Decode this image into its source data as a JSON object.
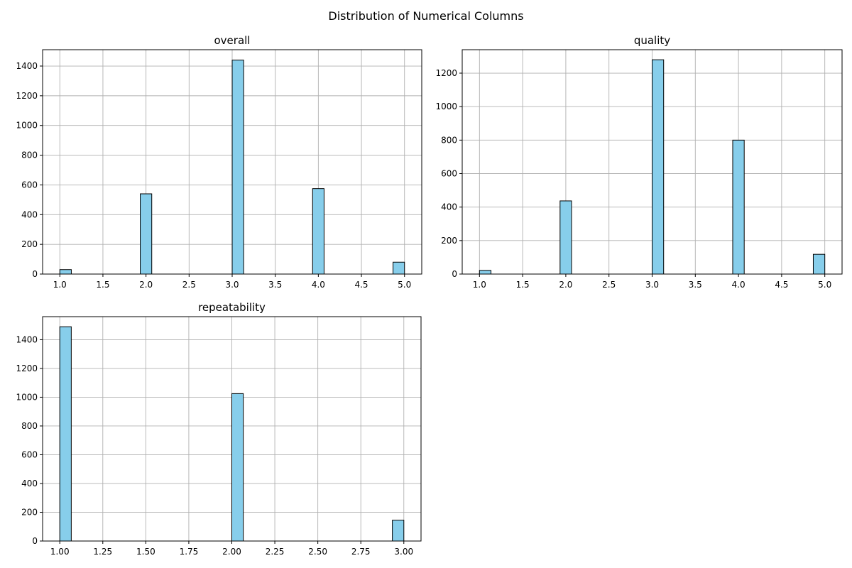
{
  "figure": {
    "title": "Distribution of Numerical Columns"
  },
  "colors": {
    "bar_fill": "#87ceeb",
    "bar_edge": "#000000",
    "grid": "#b0b0b0",
    "axes": "#000000"
  },
  "chart_data": [
    {
      "type": "bar",
      "title": "overall",
      "xlabel": "",
      "ylabel": "",
      "grid": true,
      "xlim": [
        0.8,
        5.2
      ],
      "ylim": [
        0,
        1510
      ],
      "xticks": [
        "1.0",
        "1.5",
        "2.0",
        "2.5",
        "3.0",
        "3.5",
        "4.0",
        "4.5",
        "5.0"
      ],
      "yticks": [
        "0",
        "200",
        "400",
        "600",
        "800",
        "1000",
        "1200",
        "1400"
      ],
      "bins": {
        "start": 1.0,
        "end": 5.0,
        "count": 30
      },
      "bars": [
        {
          "x": 1,
          "value": 30
        },
        {
          "x": 2,
          "value": 540
        },
        {
          "x": 3,
          "value": 1440
        },
        {
          "x": 4,
          "value": 575
        },
        {
          "x": 5,
          "value": 80
        }
      ]
    },
    {
      "type": "bar",
      "title": "quality",
      "xlabel": "",
      "ylabel": "",
      "grid": true,
      "xlim": [
        0.8,
        5.2
      ],
      "ylim": [
        0,
        1340
      ],
      "xticks": [
        "1.0",
        "1.5",
        "2.0",
        "2.5",
        "3.0",
        "3.5",
        "4.0",
        "4.5",
        "5.0"
      ],
      "yticks": [
        "0",
        "200",
        "400",
        "600",
        "800",
        "1000",
        "1200"
      ],
      "bins": {
        "start": 1.0,
        "end": 5.0,
        "count": 30
      },
      "bars": [
        {
          "x": 1,
          "value": 22
        },
        {
          "x": 2,
          "value": 437
        },
        {
          "x": 3,
          "value": 1280
        },
        {
          "x": 4,
          "value": 800
        },
        {
          "x": 5,
          "value": 118
        }
      ]
    },
    {
      "type": "bar",
      "title": "repeatability",
      "xlabel": "",
      "ylabel": "",
      "grid": true,
      "xlim": [
        0.9,
        3.1
      ],
      "ylim": [
        0,
        1560
      ],
      "xticks": [
        "1.00",
        "1.25",
        "1.50",
        "1.75",
        "2.00",
        "2.25",
        "2.50",
        "2.75",
        "3.00"
      ],
      "yticks": [
        "0",
        "200",
        "400",
        "600",
        "800",
        "1000",
        "1200",
        "1400"
      ],
      "bins": {
        "start": 1.0,
        "end": 3.0,
        "count": 30
      },
      "bars": [
        {
          "x": 1,
          "value": 1490
        },
        {
          "x": 2,
          "value": 1025
        },
        {
          "x": 3,
          "value": 145
        }
      ]
    }
  ]
}
